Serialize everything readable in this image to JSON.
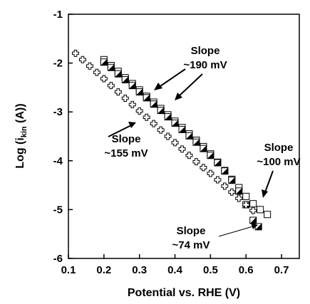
{
  "chart_data": {
    "type": "scatter",
    "xlabel": "Potential vs. RHE (V)",
    "ylabel_main": "Log (i",
    "ylabel_sub": "kin",
    "ylabel_end": " (A))",
    "xlim": [
      0.1,
      0.75
    ],
    "ylim": [
      -6,
      -1
    ],
    "x_ticks": [
      "0.1",
      "0.2",
      "0.3",
      "0.4",
      "0.5",
      "0.6",
      "0.7"
    ],
    "y_ticks": [
      "-1",
      "-2",
      "-3",
      "-4",
      "-5",
      "-6"
    ],
    "grid": false,
    "series": [
      {
        "marker": "open-square",
        "x": [
          0.2,
          0.22,
          0.24,
          0.26,
          0.28,
          0.3,
          0.32,
          0.34,
          0.36,
          0.38,
          0.4,
          0.42,
          0.44,
          0.46,
          0.48,
          0.5,
          0.52,
          0.54,
          0.56,
          0.58,
          0.6,
          0.62,
          0.64,
          0.66
        ],
        "y": [
          -1.93,
          -2.05,
          -2.17,
          -2.3,
          -2.42,
          -2.55,
          -2.68,
          -2.8,
          -2.93,
          -3.06,
          -3.19,
          -3.32,
          -3.45,
          -3.58,
          -3.71,
          -3.86,
          -4.03,
          -4.2,
          -4.38,
          -4.55,
          -4.73,
          -4.88,
          -5.0,
          -5.1
        ]
      },
      {
        "marker": "half-filled-square",
        "x": [
          0.2,
          0.22,
          0.24,
          0.26,
          0.28,
          0.3,
          0.32,
          0.34,
          0.36,
          0.38,
          0.4,
          0.42,
          0.44,
          0.46,
          0.48,
          0.5,
          0.52,
          0.54,
          0.56,
          0.58,
          0.6,
          0.62,
          0.635
        ],
        "y": [
          -1.98,
          -2.09,
          -2.22,
          -2.34,
          -2.46,
          -2.59,
          -2.71,
          -2.84,
          -2.97,
          -3.1,
          -3.23,
          -3.36,
          -3.49,
          -3.62,
          -3.75,
          -3.89,
          -4.04,
          -4.21,
          -4.4,
          -4.62,
          -4.9,
          -5.22,
          -5.35
        ]
      },
      {
        "marker": "open-cross",
        "x": [
          0.12,
          0.14,
          0.16,
          0.18,
          0.2,
          0.22,
          0.24,
          0.26,
          0.28,
          0.3,
          0.32,
          0.34,
          0.36,
          0.38,
          0.4,
          0.42,
          0.44,
          0.46,
          0.48,
          0.5,
          0.52,
          0.54,
          0.56,
          0.58,
          0.6,
          0.62
        ],
        "y": [
          -1.8,
          -1.93,
          -2.06,
          -2.19,
          -2.32,
          -2.46,
          -2.59,
          -2.72,
          -2.85,
          -2.98,
          -3.11,
          -3.24,
          -3.37,
          -3.5,
          -3.63,
          -3.76,
          -3.89,
          -4.02,
          -4.14,
          -4.26,
          -4.39,
          -4.52,
          -4.64,
          -4.77,
          -4.9,
          -5.02
        ]
      }
    ],
    "annotations": [
      {
        "lines": [
          "Slope",
          "~190 mV"
        ]
      },
      {
        "lines": [
          "Slope",
          "~155 mV"
        ]
      },
      {
        "lines": [
          "Slope",
          "~100 mV"
        ]
      },
      {
        "lines": [
          "Slope",
          "~74 mV"
        ]
      }
    ]
  }
}
